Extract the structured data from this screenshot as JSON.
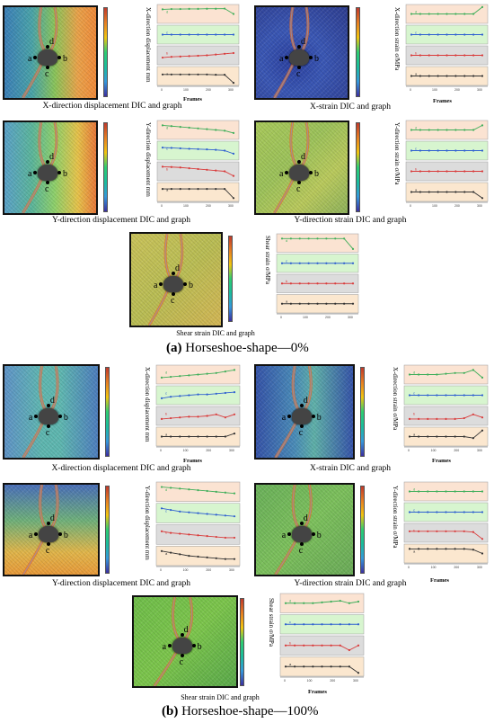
{
  "panels": [
    {
      "label_letter": "(a)",
      "label_text": "Horseshoe-shape—0%",
      "figures": [
        {
          "caption": "X-direction displacement DIC and graph",
          "ylabel": "X-direction displacement mm"
        },
        {
          "caption": "X-strain DIC and graph",
          "ylabel": "X-direction strain σ/MPa"
        },
        {
          "caption": "Y-direction displacement DIC and graph",
          "ylabel": "Y-direction displacement mm"
        },
        {
          "caption": "Y-direction strain DIC and graph",
          "ylabel": "Y-direction strain σ/MPa"
        },
        {
          "caption": "Shear strain DIC and graph",
          "ylabel": "Shear strain σ/MPa"
        }
      ]
    },
    {
      "label_letter": "(b)",
      "label_text": "Horseshoe-shape—100%",
      "figures": [
        {
          "caption": "X-direction displacement DIC and graph",
          "ylabel": "X-direction displacement mm"
        },
        {
          "caption": "X-strain DIC and graph",
          "ylabel": "X-direction strain σ/MPa"
        },
        {
          "caption": "Y-direction displacement DIC and graph",
          "ylabel": "Y-direction displacement mm"
        },
        {
          "caption": "Y-direction strain DIC and graph",
          "ylabel": "Y-direction strain σ/MPa"
        },
        {
          "caption": "Shear strain DIC and graph",
          "ylabel": "Shear strain σ/MPa"
        }
      ]
    }
  ],
  "frames_label": "Frames",
  "point_labels": [
    "a",
    "b",
    "c",
    "d"
  ],
  "strip_series": [
    "d",
    "c",
    "b",
    "a"
  ],
  "strip_colors": {
    "d": {
      "bg": "#fbe3d2",
      "line": "#3fae5a"
    },
    "c": {
      "bg": "#d7f5cf",
      "line": "#2f5fd0"
    },
    "b": {
      "bg": "#dcdcdc",
      "line": "#d93a3a"
    },
    "a": {
      "bg": "#fbe7cf",
      "line": "#333333"
    }
  },
  "x_ticks": [
    "0",
    "100",
    "200",
    "300"
  ],
  "chart_data": [
    {
      "type": "line",
      "series": [
        {
          "name": "d",
          "values": [
            0.8,
            0.82,
            0.82,
            0.83,
            0.83,
            0.84,
            0.84,
            0.85,
            0.5
          ]
        },
        {
          "name": "c",
          "values": [
            0.5,
            0.5,
            0.5,
            0.5,
            0.5,
            0.5,
            0.5,
            0.5,
            0.5
          ]
        },
        {
          "name": "b",
          "values": [
            0.35,
            0.4,
            0.42,
            0.45,
            0.47,
            0.5,
            0.55,
            0.6,
            0.65
          ]
        },
        {
          "name": "a",
          "values": [
            0.6,
            0.6,
            0.6,
            0.6,
            0.6,
            0.6,
            0.58,
            0.58,
            0.05
          ]
        }
      ]
    },
    {
      "type": "line",
      "series": [
        {
          "name": "d",
          "values": [
            0.5,
            0.5,
            0.5,
            0.5,
            0.5,
            0.5,
            0.5,
            0.5,
            0.95
          ]
        },
        {
          "name": "c",
          "values": [
            0.5,
            0.5,
            0.5,
            0.5,
            0.5,
            0.5,
            0.5,
            0.5,
            0.5
          ]
        },
        {
          "name": "b",
          "values": [
            0.5,
            0.5,
            0.5,
            0.5,
            0.5,
            0.5,
            0.5,
            0.5,
            0.5
          ]
        },
        {
          "name": "a",
          "values": [
            0.5,
            0.5,
            0.5,
            0.5,
            0.5,
            0.5,
            0.5,
            0.5,
            0.5
          ]
        }
      ]
    },
    {
      "type": "line",
      "series": [
        {
          "name": "d",
          "values": [
            0.8,
            0.75,
            0.7,
            0.65,
            0.6,
            0.55,
            0.5,
            0.45,
            0.3
          ]
        },
        {
          "name": "c",
          "values": [
            0.7,
            0.68,
            0.65,
            0.62,
            0.6,
            0.58,
            0.55,
            0.5,
            0.3
          ]
        },
        {
          "name": "b",
          "values": [
            0.8,
            0.78,
            0.75,
            0.7,
            0.65,
            0.6,
            0.55,
            0.5,
            0.2
          ]
        },
        {
          "name": "a",
          "values": [
            0.7,
            0.7,
            0.7,
            0.7,
            0.7,
            0.7,
            0.7,
            0.7,
            0.1
          ]
        }
      ]
    },
    {
      "type": "line",
      "series": [
        {
          "name": "d",
          "values": [
            0.5,
            0.5,
            0.5,
            0.5,
            0.5,
            0.5,
            0.5,
            0.5,
            0.8
          ]
        },
        {
          "name": "c",
          "values": [
            0.5,
            0.5,
            0.5,
            0.5,
            0.5,
            0.5,
            0.5,
            0.5,
            0.5
          ]
        },
        {
          "name": "b",
          "values": [
            0.5,
            0.5,
            0.5,
            0.5,
            0.5,
            0.5,
            0.5,
            0.5,
            0.5
          ]
        },
        {
          "name": "a",
          "values": [
            0.5,
            0.5,
            0.5,
            0.5,
            0.5,
            0.5,
            0.5,
            0.5,
            0.1
          ]
        }
      ]
    },
    {
      "type": "line",
      "series": [
        {
          "name": "d",
          "values": [
            0.8,
            0.8,
            0.8,
            0.8,
            0.8,
            0.8,
            0.8,
            0.8,
            0.1
          ]
        },
        {
          "name": "c",
          "values": [
            0.5,
            0.5,
            0.5,
            0.5,
            0.5,
            0.5,
            0.5,
            0.5,
            0.5
          ]
        },
        {
          "name": "b",
          "values": [
            0.5,
            0.5,
            0.5,
            0.5,
            0.5,
            0.5,
            0.5,
            0.5,
            0.5
          ]
        },
        {
          "name": "a",
          "values": [
            0.5,
            0.5,
            0.5,
            0.5,
            0.5,
            0.5,
            0.5,
            0.5,
            0.5
          ]
        }
      ]
    },
    {
      "type": "line",
      "series": [
        {
          "name": "d",
          "values": [
            0.3,
            0.35,
            0.4,
            0.45,
            0.5,
            0.55,
            0.6,
            0.7,
            0.8
          ]
        },
        {
          "name": "c",
          "values": [
            0.3,
            0.4,
            0.45,
            0.5,
            0.55,
            0.55,
            0.6,
            0.65,
            0.7
          ]
        },
        {
          "name": "b",
          "values": [
            0.3,
            0.35,
            0.4,
            0.45,
            0.45,
            0.5,
            0.6,
            0.4,
            0.6
          ]
        },
        {
          "name": "a",
          "values": [
            0.5,
            0.5,
            0.5,
            0.5,
            0.5,
            0.5,
            0.5,
            0.5,
            0.7
          ]
        }
      ]
    },
    {
      "type": "line",
      "series": [
        {
          "name": "d",
          "values": [
            0.5,
            0.5,
            0.5,
            0.5,
            0.55,
            0.6,
            0.6,
            0.8,
            0.3
          ]
        },
        {
          "name": "c",
          "values": [
            0.5,
            0.5,
            0.5,
            0.5,
            0.5,
            0.5,
            0.5,
            0.5,
            0.5
          ]
        },
        {
          "name": "b",
          "values": [
            0.3,
            0.3,
            0.3,
            0.3,
            0.3,
            0.3,
            0.35,
            0.6,
            0.4
          ]
        },
        {
          "name": "a",
          "values": [
            0.5,
            0.5,
            0.5,
            0.5,
            0.5,
            0.5,
            0.5,
            0.4,
            0.9
          ]
        }
      ]
    },
    {
      "type": "line",
      "series": [
        {
          "name": "d",
          "values": [
            0.8,
            0.75,
            0.7,
            0.65,
            0.6,
            0.55,
            0.5,
            0.45,
            0.4
          ]
        },
        {
          "name": "c",
          "values": [
            0.8,
            0.7,
            0.6,
            0.55,
            0.5,
            0.45,
            0.4,
            0.35,
            0.3
          ]
        },
        {
          "name": "b",
          "values": [
            0.7,
            0.6,
            0.55,
            0.5,
            0.45,
            0.4,
            0.35,
            0.3,
            0.3
          ]
        },
        {
          "name": "a",
          "values": [
            0.8,
            0.7,
            0.6,
            0.5,
            0.45,
            0.4,
            0.35,
            0.3,
            0.3
          ]
        }
      ]
    },
    {
      "type": "line",
      "series": [
        {
          "name": "d",
          "values": [
            0.5,
            0.5,
            0.5,
            0.5,
            0.5,
            0.5,
            0.5,
            0.5,
            0.5
          ]
        },
        {
          "name": "c",
          "values": [
            0.5,
            0.5,
            0.5,
            0.5,
            0.5,
            0.5,
            0.5,
            0.5,
            0.5
          ]
        },
        {
          "name": "b",
          "values": [
            0.6,
            0.6,
            0.6,
            0.6,
            0.6,
            0.6,
            0.6,
            0.55,
            0.1
          ]
        },
        {
          "name": "a",
          "values": [
            0.8,
            0.8,
            0.8,
            0.8,
            0.8,
            0.8,
            0.8,
            0.75,
            0.5
          ]
        }
      ]
    },
    {
      "type": "line",
      "series": [
        {
          "name": "d",
          "values": [
            0.5,
            0.5,
            0.5,
            0.5,
            0.55,
            0.6,
            0.65,
            0.5,
            0.6
          ]
        },
        {
          "name": "c",
          "values": [
            0.5,
            0.5,
            0.5,
            0.5,
            0.5,
            0.5,
            0.5,
            0.5,
            0.5
          ]
        },
        {
          "name": "b",
          "values": [
            0.5,
            0.5,
            0.5,
            0.5,
            0.5,
            0.5,
            0.5,
            0.2,
            0.5
          ]
        },
        {
          "name": "a",
          "values": [
            0.5,
            0.5,
            0.5,
            0.5,
            0.5,
            0.5,
            0.5,
            0.5,
            0.1
          ]
        }
      ]
    }
  ]
}
